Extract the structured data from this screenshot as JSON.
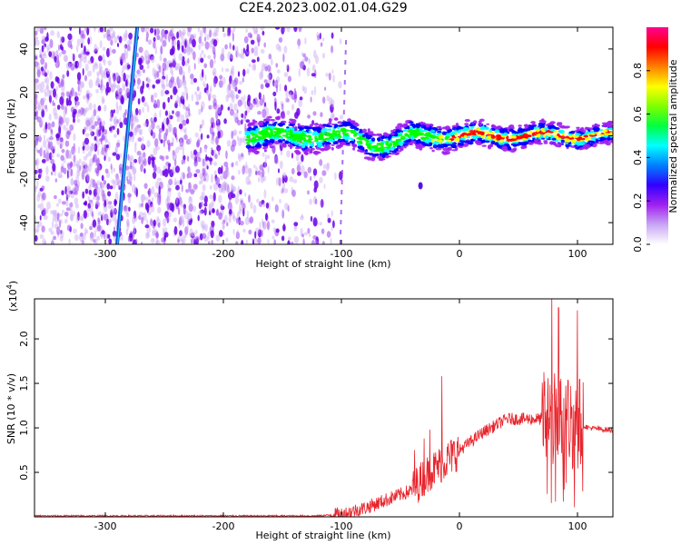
{
  "title": "C2E4.2023.002.01.04.G29",
  "chart_data": [
    {
      "type": "heatmap",
      "name": "spectrogram",
      "xlabel": "Height of straight line (km)",
      "ylabel": "Frequency (Hz)",
      "xlim": [
        -360,
        130
      ],
      "ylim": [
        -50,
        50
      ],
      "xticks": [
        -300,
        -200,
        -100,
        0,
        100
      ],
      "yticks": [
        -40,
        -20,
        0,
        20,
        40
      ],
      "colorbar": {
        "label": "Normalized spectral amplitude",
        "range": [
          0.0,
          1.0
        ],
        "ticks": [
          0.0,
          0.2,
          0.4,
          0.6,
          0.8
        ],
        "colormap": [
          "#ffffff",
          "#a020f0",
          "#0000ff",
          "#00ffff",
          "#00ff00",
          "#ffff00",
          "#ff0000",
          "#ff00a0"
        ]
      },
      "features": {
        "noise_region_x": [
          -360,
          -100
        ],
        "band_start_x": -180,
        "band_center_freq": 0,
        "diagonal_line": {
          "x_start": -290,
          "x_end": -273
        }
      }
    },
    {
      "type": "line",
      "name": "snr",
      "xlabel": "Height of straight line (km)",
      "ylabel": "SNR (10 * v/v)",
      "scale_note": "(x10^4)",
      "xlim": [
        -360,
        130
      ],
      "ylim": [
        0,
        2.45
      ],
      "xticks": [
        -300,
        -200,
        -100,
        0,
        100
      ],
      "yticks": [
        0.5,
        1.0,
        1.5,
        2.0
      ],
      "color": "#e8242c",
      "envelope": {
        "x": [
          -360,
          -120,
          -100,
          -80,
          -60,
          -40,
          -30,
          -20,
          -10,
          0,
          20,
          40,
          60,
          80,
          100,
          110,
          130
        ],
        "y": [
          0.01,
          0.01,
          0.03,
          0.1,
          0.2,
          0.3,
          0.45,
          0.55,
          0.65,
          0.75,
          0.95,
          1.1,
          1.1,
          1.1,
          1.05,
          1.0,
          0.97
        ]
      },
      "spikes": [
        {
          "x": -38,
          "y": 0.75
        },
        {
          "x": -30,
          "y": 0.88
        },
        {
          "x": -25,
          "y": 0.98
        },
        {
          "x": -15,
          "y": 1.58
        },
        {
          "x": 78,
          "y": 2.55
        },
        {
          "x": 84,
          "y": 2.35
        },
        {
          "x": 100,
          "y": 2.32
        }
      ]
    }
  ]
}
